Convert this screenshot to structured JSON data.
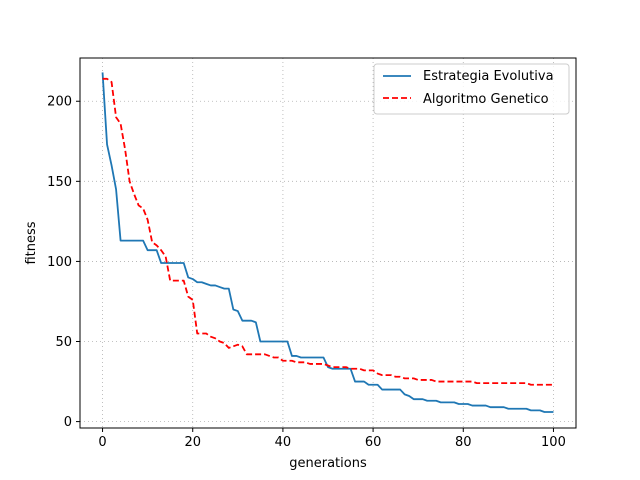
{
  "chart_data": {
    "type": "line",
    "xlabel": "generations",
    "ylabel": "fitness",
    "xlim": [
      -5,
      105
    ],
    "ylim": [
      -4,
      227
    ],
    "xticks": [
      0,
      20,
      40,
      60,
      80,
      100
    ],
    "yticks": [
      0,
      50,
      100,
      150,
      200
    ],
    "grid": true,
    "legend_position": "top-right",
    "series": [
      {
        "name": "Estrategia Evolutiva",
        "color": "#1f77b4",
        "style": "solid",
        "points": [
          [
            0,
            218
          ],
          [
            1,
            173
          ],
          [
            2,
            160
          ],
          [
            3,
            145
          ],
          [
            4,
            113
          ],
          [
            5,
            113
          ],
          [
            6,
            113
          ],
          [
            7,
            113
          ],
          [
            8,
            113
          ],
          [
            9,
            113
          ],
          [
            10,
            107
          ],
          [
            11,
            107
          ],
          [
            12,
            107
          ],
          [
            13,
            99
          ],
          [
            14,
            99
          ],
          [
            15,
            99
          ],
          [
            16,
            99
          ],
          [
            17,
            99
          ],
          [
            18,
            99
          ],
          [
            19,
            90
          ],
          [
            20,
            89
          ],
          [
            21,
            87
          ],
          [
            22,
            87
          ],
          [
            23,
            86
          ],
          [
            24,
            85
          ],
          [
            25,
            85
          ],
          [
            26,
            84
          ],
          [
            27,
            83
          ],
          [
            28,
            83
          ],
          [
            29,
            70
          ],
          [
            30,
            69
          ],
          [
            31,
            63
          ],
          [
            32,
            63
          ],
          [
            33,
            63
          ],
          [
            34,
            62
          ],
          [
            35,
            50
          ],
          [
            36,
            50
          ],
          [
            37,
            50
          ],
          [
            38,
            50
          ],
          [
            39,
            50
          ],
          [
            40,
            50
          ],
          [
            41,
            50
          ],
          [
            42,
            41
          ],
          [
            43,
            41
          ],
          [
            44,
            40
          ],
          [
            45,
            40
          ],
          [
            46,
            40
          ],
          [
            47,
            40
          ],
          [
            48,
            40
          ],
          [
            49,
            40
          ],
          [
            50,
            34
          ],
          [
            51,
            33
          ],
          [
            52,
            33
          ],
          [
            53,
            33
          ],
          [
            54,
            33
          ],
          [
            55,
            33
          ],
          [
            56,
            25
          ],
          [
            57,
            25
          ],
          [
            58,
            25
          ],
          [
            59,
            23
          ],
          [
            60,
            23
          ],
          [
            61,
            23
          ],
          [
            62,
            20
          ],
          [
            63,
            20
          ],
          [
            64,
            20
          ],
          [
            65,
            20
          ],
          [
            66,
            20
          ],
          [
            67,
            17
          ],
          [
            68,
            16
          ],
          [
            69,
            14
          ],
          [
            70,
            14
          ],
          [
            71,
            14
          ],
          [
            72,
            13
          ],
          [
            73,
            13
          ],
          [
            74,
            13
          ],
          [
            75,
            12
          ],
          [
            76,
            12
          ],
          [
            77,
            12
          ],
          [
            78,
            12
          ],
          [
            79,
            11
          ],
          [
            80,
            11
          ],
          [
            81,
            11
          ],
          [
            82,
            10
          ],
          [
            83,
            10
          ],
          [
            84,
            10
          ],
          [
            85,
            10
          ],
          [
            86,
            9
          ],
          [
            87,
            9
          ],
          [
            88,
            9
          ],
          [
            89,
            9
          ],
          [
            90,
            8
          ],
          [
            91,
            8
          ],
          [
            92,
            8
          ],
          [
            93,
            8
          ],
          [
            94,
            8
          ],
          [
            95,
            7
          ],
          [
            96,
            7
          ],
          [
            97,
            7
          ],
          [
            98,
            6
          ],
          [
            99,
            6
          ],
          [
            100,
            6
          ]
        ]
      },
      {
        "name": "Algoritmo Genetico",
        "color": "#ff0000",
        "style": "dashed",
        "points": [
          [
            0,
            214
          ],
          [
            1,
            214
          ],
          [
            2,
            212
          ],
          [
            3,
            190
          ],
          [
            4,
            186
          ],
          [
            5,
            170
          ],
          [
            6,
            150
          ],
          [
            7,
            142
          ],
          [
            8,
            135
          ],
          [
            9,
            133
          ],
          [
            10,
            126
          ],
          [
            11,
            112
          ],
          [
            12,
            110
          ],
          [
            13,
            107
          ],
          [
            14,
            103
          ],
          [
            15,
            88
          ],
          [
            16,
            88
          ],
          [
            17,
            88
          ],
          [
            18,
            88
          ],
          [
            19,
            78
          ],
          [
            20,
            76
          ],
          [
            21,
            55
          ],
          [
            22,
            55
          ],
          [
            23,
            55
          ],
          [
            24,
            53
          ],
          [
            25,
            52
          ],
          [
            26,
            50
          ],
          [
            27,
            49
          ],
          [
            28,
            46
          ],
          [
            29,
            47
          ],
          [
            30,
            48
          ],
          [
            31,
            47
          ],
          [
            32,
            42
          ],
          [
            33,
            42
          ],
          [
            34,
            42
          ],
          [
            35,
            42
          ],
          [
            36,
            42
          ],
          [
            37,
            41
          ],
          [
            38,
            40
          ],
          [
            39,
            40
          ],
          [
            40,
            38
          ],
          [
            41,
            38
          ],
          [
            42,
            38
          ],
          [
            43,
            37
          ],
          [
            44,
            37
          ],
          [
            45,
            37
          ],
          [
            46,
            36
          ],
          [
            47,
            36
          ],
          [
            48,
            36
          ],
          [
            49,
            36
          ],
          [
            50,
            35
          ],
          [
            51,
            34
          ],
          [
            52,
            34
          ],
          [
            53,
            34
          ],
          [
            54,
            34
          ],
          [
            55,
            33
          ],
          [
            56,
            33
          ],
          [
            57,
            33
          ],
          [
            58,
            32
          ],
          [
            59,
            32
          ],
          [
            60,
            32
          ],
          [
            61,
            30
          ],
          [
            62,
            29
          ],
          [
            63,
            29
          ],
          [
            64,
            29
          ],
          [
            65,
            28
          ],
          [
            66,
            28
          ],
          [
            67,
            27
          ],
          [
            68,
            27
          ],
          [
            69,
            27
          ],
          [
            70,
            26
          ],
          [
            71,
            26
          ],
          [
            72,
            26
          ],
          [
            73,
            26
          ],
          [
            74,
            25
          ],
          [
            75,
            25
          ],
          [
            76,
            25
          ],
          [
            77,
            25
          ],
          [
            78,
            25
          ],
          [
            79,
            25
          ],
          [
            80,
            25
          ],
          [
            81,
            25
          ],
          [
            82,
            25
          ],
          [
            83,
            24
          ],
          [
            84,
            24
          ],
          [
            85,
            24
          ],
          [
            86,
            24
          ],
          [
            87,
            24
          ],
          [
            88,
            24
          ],
          [
            89,
            24
          ],
          [
            90,
            24
          ],
          [
            91,
            24
          ],
          [
            92,
            24
          ],
          [
            93,
            24
          ],
          [
            94,
            24
          ],
          [
            95,
            23
          ],
          [
            96,
            23
          ],
          [
            97,
            23
          ],
          [
            98,
            23
          ],
          [
            99,
            23
          ],
          [
            100,
            23
          ]
        ]
      }
    ]
  }
}
